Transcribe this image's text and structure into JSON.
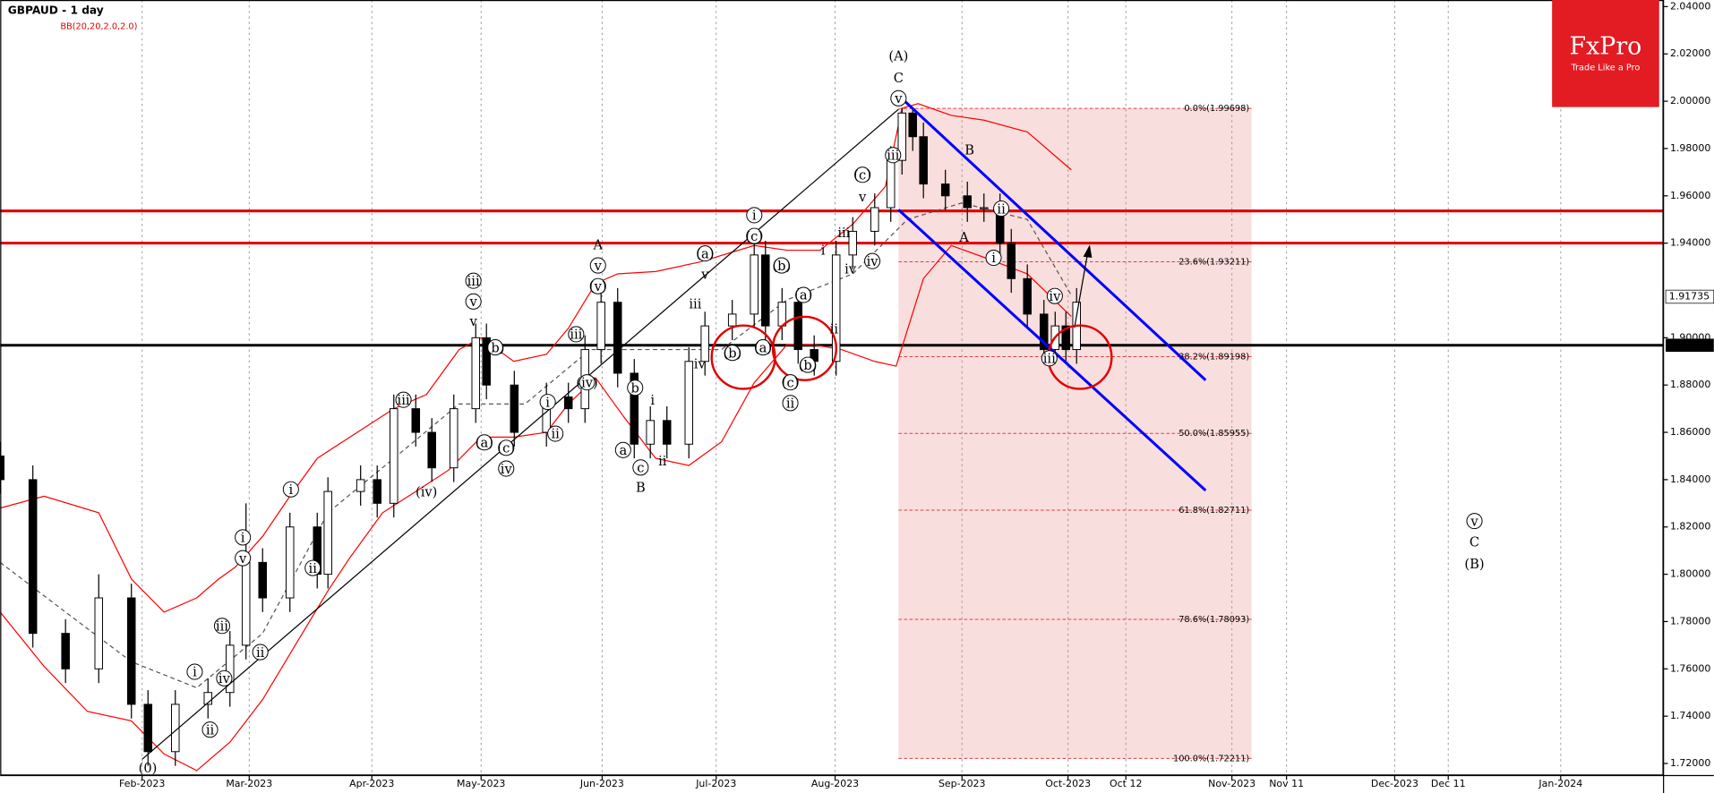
{
  "chart_data": {
    "type": "candlestick",
    "title": "GBPAUD - 1 day",
    "indicator": "BB(20,20,2.0,2.0)",
    "logo": {
      "brand": "FxPro",
      "tagline": "Trade Like a Pro"
    },
    "xlim": [
      0,
      310.6
    ],
    "ylim": [
      1.7149,
      2.0428
    ],
    "grid": true,
    "up_color": "#ffffff",
    "down_color": "#000000",
    "band_color": "#ff0000",
    "xticks": [
      {
        "value": 26.5,
        "label": "Feb-2023"
      },
      {
        "value": 46.5,
        "label": "Mar-2023"
      },
      {
        "value": 69.4,
        "label": "Apr-2023"
      },
      {
        "value": 89.8,
        "label": "May-2023"
      },
      {
        "value": 112.4,
        "label": "Jun-2023"
      },
      {
        "value": 133.7,
        "label": "Jul-2023"
      },
      {
        "value": 155.9,
        "label": "Aug-2023"
      },
      {
        "value": 179.6,
        "label": "Sep-2023"
      },
      {
        "value": 199.4,
        "label": "Oct-2023"
      },
      {
        "value": 210.2,
        "label": "Oct 12"
      },
      {
        "value": 230,
        "label": "Nov-2023"
      },
      {
        "value": 240.2,
        "label": "Nov 11"
      },
      {
        "value": 260.4,
        "label": "Dec-2023"
      },
      {
        "value": 270.4,
        "label": "Dec 11"
      },
      {
        "value": 291.4,
        "label": "Jan-2024"
      }
    ],
    "yticks": [
      {
        "value": 2.04,
        "label": "2.04000"
      },
      {
        "value": 2.02,
        "label": "2.02000"
      },
      {
        "value": 2.0,
        "label": "2.00000"
      },
      {
        "value": 1.98,
        "label": "1.98000"
      },
      {
        "value": 1.96,
        "label": "1.96000"
      },
      {
        "value": 1.94,
        "label": "1.94000"
      },
      {
        "value": 1.9,
        "label": "1.90000"
      },
      {
        "value": 1.88,
        "label": "1.88000"
      },
      {
        "value": 1.86,
        "label": "1.86000"
      },
      {
        "value": 1.84,
        "label": "1.84000"
      },
      {
        "value": 1.82,
        "label": "1.82000"
      },
      {
        "value": 1.8,
        "label": "1.80000"
      },
      {
        "value": 1.78,
        "label": "1.78000"
      },
      {
        "value": 1.76,
        "label": "1.76000"
      },
      {
        "value": 1.74,
        "label": "1.74000"
      },
      {
        "value": 1.72,
        "label": "1.72000"
      }
    ],
    "current_price": {
      "value": 1.91735,
      "label": "1.91735"
    },
    "support_line": {
      "value": 1.89682,
      "label": "1.89682"
    },
    "resistance_lines": [
      1.9536,
      1.94
    ],
    "fib_levels": [
      {
        "value": 1.99698,
        "label": "0.0%(1.99698)"
      },
      {
        "value": 1.93211,
        "label": "23.6%(1.93211)"
      },
      {
        "value": 1.89198,
        "label": "38.2%(1.89198)"
      },
      {
        "value": 1.85955,
        "label": "50.0%(1.85955)"
      },
      {
        "value": 1.82711,
        "label": "61.8%(1.82711)"
      },
      {
        "value": 1.78093,
        "label": "78.6%(1.78093)"
      },
      {
        "value": 1.72211,
        "label": "100.0%(1.72211)"
      }
    ],
    "candles": {
      "x": [
        0,
        6.1,
        12.2,
        18.4,
        24.5,
        27.6,
        32.7,
        38.8,
        42.9,
        45.9,
        49,
        54.1,
        59.2,
        61.2,
        67.3,
        70.4,
        73.5,
        77.6,
        80.6,
        84.7,
        88.8,
        90.8,
        96,
        102,
        106.1,
        109.2,
        112.2,
        115.3,
        118.4,
        121.4,
        124.5,
        128.6,
        131.6,
        136.7,
        140.8,
        142.9,
        146,
        149,
        152,
        156.1,
        159.2,
        163.3,
        166.3,
        168.4,
        170.4,
        172.4,
        176.5,
        180.6,
        183.7,
        186.7,
        188.8,
        191.8,
        194.9,
        197,
        199,
        201
      ],
      "open": [
        1.85,
        1.84,
        1.775,
        1.76,
        1.79,
        1.745,
        1.725,
        1.745,
        1.75,
        1.77,
        1.805,
        1.79,
        1.82,
        1.8,
        1.835,
        1.84,
        1.83,
        1.87,
        1.86,
        1.845,
        1.87,
        1.9,
        1.88,
        1.86,
        1.875,
        1.87,
        1.895,
        1.915,
        1.885,
        1.855,
        1.865,
        1.855,
        1.89,
        1.905,
        1.91,
        1.935,
        1.905,
        1.915,
        1.895,
        1.89,
        1.935,
        1.945,
        1.955,
        1.975,
        1.995,
        1.985,
        1.965,
        1.96,
        1.955,
        1.955,
        1.94,
        1.925,
        1.91,
        1.895,
        1.905,
        1.895
      ],
      "high": [
        1.856,
        1.846,
        1.781,
        1.8,
        1.796,
        1.751,
        1.751,
        1.756,
        1.776,
        1.83,
        1.811,
        1.826,
        1.826,
        1.841,
        1.846,
        1.846,
        1.876,
        1.876,
        1.866,
        1.876,
        1.906,
        1.906,
        1.886,
        1.881,
        1.881,
        1.901,
        1.921,
        1.921,
        1.891,
        1.871,
        1.871,
        1.896,
        1.911,
        1.916,
        1.941,
        1.941,
        1.921,
        1.921,
        1.901,
        1.941,
        1.951,
        1.961,
        1.981,
        1.997,
        1.997,
        1.991,
        1.971,
        1.966,
        1.961,
        1.961,
        1.946,
        1.931,
        1.916,
        1.911,
        1.911,
        1.921
      ],
      "low": [
        1.834,
        1.769,
        1.754,
        1.754,
        1.739,
        1.719,
        1.719,
        1.739,
        1.744,
        1.764,
        1.784,
        1.784,
        1.794,
        1.794,
        1.829,
        1.824,
        1.824,
        1.854,
        1.839,
        1.839,
        1.864,
        1.874,
        1.854,
        1.854,
        1.864,
        1.864,
        1.889,
        1.879,
        1.849,
        1.849,
        1.849,
        1.849,
        1.884,
        1.899,
        1.904,
        1.899,
        1.899,
        1.889,
        1.884,
        1.884,
        1.929,
        1.939,
        1.949,
        1.969,
        1.979,
        1.959,
        1.954,
        1.949,
        1.949,
        1.934,
        1.919,
        1.904,
        1.889,
        1.889,
        1.889,
        1.889
      ],
      "close": [
        1.84,
        1.775,
        1.76,
        1.79,
        1.745,
        1.725,
        1.745,
        1.75,
        1.77,
        1.805,
        1.79,
        1.82,
        1.8,
        1.835,
        1.84,
        1.83,
        1.87,
        1.86,
        1.845,
        1.87,
        1.9,
        1.88,
        1.86,
        1.875,
        1.87,
        1.895,
        1.915,
        1.885,
        1.855,
        1.865,
        1.855,
        1.89,
        1.905,
        1.91,
        1.935,
        1.905,
        1.915,
        1.895,
        1.89,
        1.935,
        1.945,
        1.955,
        1.975,
        1.995,
        1.985,
        1.965,
        1.96,
        1.955,
        1.955,
        1.94,
        1.925,
        1.91,
        1.895,
        1.905,
        1.895,
        1.915
      ]
    },
    "bands": [
      {
        "x": [
          0,
          8.2,
          18.4,
          24.5,
          30.6,
          36.7,
          40.8,
          43.9,
          49,
          54.1,
          59.2,
          65.3,
          73.5,
          79.6,
          85.7,
          89.8,
          95.9,
          102,
          106.1,
          111.2,
          115.3,
          122.4,
          130.6,
          140.8,
          146.9,
          153.1,
          159.2,
          165.3,
          168.4,
          171.4,
          177.6,
          183.7,
          191.8,
          200
        ],
        "values": [
          1.828,
          1.833,
          1.826,
          1.798,
          1.784,
          1.79,
          1.798,
          1.803,
          1.816,
          1.833,
          1.849,
          1.858,
          1.87,
          1.876,
          1.895,
          1.9,
          1.89,
          1.893,
          1.904,
          1.923,
          1.927,
          1.928,
          1.932,
          1.939,
          1.937,
          1.937,
          1.948,
          1.964,
          1.997,
          1.999,
          1.994,
          1.992,
          1.987,
          1.971
        ]
      },
      {
        "x": [
          0,
          12.2,
          24.5,
          36.7,
          49,
          61.2,
          73.5,
          85.7,
          98,
          110.2,
          122.4,
          134.7,
          146.9,
          159.2,
          169.4,
          179.6,
          191.8,
          200
        ],
        "values": [
          1.805,
          1.784,
          1.763,
          1.752,
          1.775,
          1.826,
          1.849,
          1.872,
          1.872,
          1.895,
          1.895,
          1.895,
          1.916,
          1.927,
          1.95,
          1.957,
          1.95,
          1.918
        ]
      },
      {
        "x": [
          0,
          8.2,
          16.3,
          24.5,
          30.6,
          36.7,
          42.9,
          49,
          55.1,
          61.2,
          65.3,
          71.4,
          77.6,
          83.7,
          89.8,
          95.9,
          102,
          106.1,
          111.2,
          116.3,
          122.4,
          128.6,
          134.7,
          140.8,
          146.9,
          152,
          157.1,
          163.3,
          167.3,
          172.4,
          177.6,
          183.7,
          191.8,
          200
        ],
        "values": [
          1.784,
          1.761,
          1.742,
          1.738,
          1.724,
          1.717,
          1.729,
          1.747,
          1.77,
          1.793,
          1.807,
          1.826,
          1.835,
          1.844,
          1.858,
          1.858,
          1.86,
          1.872,
          1.883,
          1.867,
          1.849,
          1.846,
          1.856,
          1.881,
          1.897,
          1.897,
          1.895,
          1.89,
          1.888,
          1.925,
          1.939,
          1.934,
          1.927,
          1.909
        ]
      }
    ],
    "wave_labels": [
      "(A)",
      "C",
      "v",
      "(0)",
      "i",
      "ii",
      "iv",
      "iii",
      "ii",
      "i",
      "v",
      "i",
      "ii",
      "iii",
      "(iv)",
      "iii",
      "v",
      "v",
      "(b)",
      "(a)",
      "(c)",
      "iv",
      "i",
      "ii",
      "iii",
      "(iv)",
      "A",
      "v",
      "(v)",
      "a",
      "b",
      "c",
      "B",
      "i",
      "ii",
      "iii",
      "iv",
      "v",
      "(a)",
      "(b)",
      "(a)",
      "i",
      "(c)",
      "(b)",
      "(a)",
      "(b)",
      "(c)",
      "ii",
      "ii",
      "i",
      "iii",
      "iv",
      "iv",
      "v",
      "(c)",
      "iii",
      "B",
      "A",
      "ii",
      "i",
      "iv",
      "iii",
      "v",
      "C",
      "(B)"
    ]
  }
}
